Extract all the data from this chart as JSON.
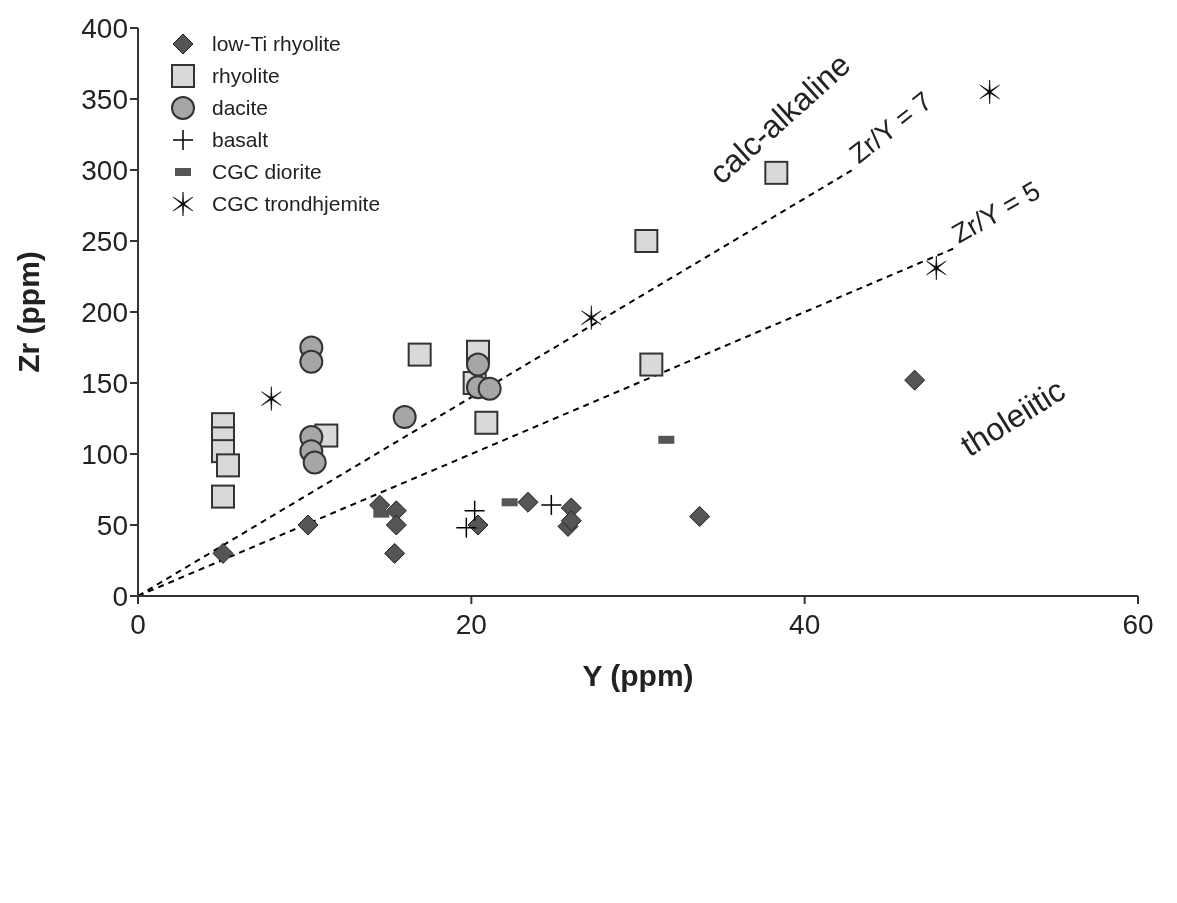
{
  "chart_data": {
    "type": "scatter",
    "xlabel": "Y (ppm)",
    "ylabel": "Zr (ppm)",
    "xlim": [
      0,
      60
    ],
    "xticks": [
      0,
      20,
      40,
      60
    ],
    "ylim": [
      0,
      400
    ],
    "yticks": [
      0,
      50,
      100,
      150,
      200,
      250,
      300,
      350,
      400
    ],
    "legend": "top left",
    "series": [
      {
        "name": "low-Ti rhyolite",
        "color": "#555555",
        "marker": "diamond",
        "x": [
          5.1,
          10.2,
          14.5,
          15.5,
          15.5,
          15.4,
          20.4,
          23.4,
          26.0,
          25.8,
          26.0,
          33.7,
          46.6
        ],
        "values": [
          30,
          50,
          64,
          60,
          50,
          30,
          50,
          66,
          62,
          49,
          53,
          56,
          152
        ]
      },
      {
        "name": "rhyolite",
        "color": "#d9d9d9",
        "marker": "square",
        "x": [
          5.1,
          5.1,
          5.1,
          5.4,
          5.1,
          11.3,
          16.9,
          20.4,
          20.2,
          20.9,
          30.5,
          38.3,
          30.8
        ],
        "values": [
          121,
          111,
          102,
          92,
          70,
          113,
          170,
          172,
          150,
          122,
          250,
          298,
          163
        ]
      },
      {
        "name": "dacite",
        "color": "#a6a6a6",
        "marker": "circle",
        "x": [
          10.4,
          10.4,
          16.0,
          10.4,
          10.4,
          10.6,
          20.4,
          20.4,
          21.1
        ],
        "values": [
          175,
          165,
          126,
          112,
          102,
          94,
          163,
          147,
          146
        ]
      },
      {
        "name": "basalt",
        "color": "#000000",
        "x": [
          20.2,
          19.7,
          24.8
        ],
        "values": [
          60,
          48,
          64
        ]
      },
      {
        "name": "CGC diorite",
        "color": "#555555",
        "marker": "square",
        "x": [
          31.7,
          22.3,
          14.6
        ],
        "values": [
          110,
          66,
          58
        ]
      },
      {
        "name": "CGC trondhjemite",
        "color": "#000000",
        "marker": "cross",
        "x": [
          8.0,
          27.2,
          51.1,
          47.9
        ],
        "values": [
          139,
          196,
          355,
          231
        ]
      },
      {
        "name": "Zr/Y = 7",
        "type": "line",
        "color": "#000000",
        "line_style": "dashed",
        "marker": "none",
        "x": [
          0,
          43
        ],
        "values": [
          0,
          301
        ]
      },
      {
        "name": "Zr/Y = 5",
        "type": "line",
        "color": "#000000",
        "line_style": "dashed",
        "marker": "none",
        "x": [
          0,
          49
        ],
        "values": [
          0,
          245
        ]
      }
    ],
    "annotations": [
      "calc-alkaline",
      "tholeiitic"
    ]
  }
}
